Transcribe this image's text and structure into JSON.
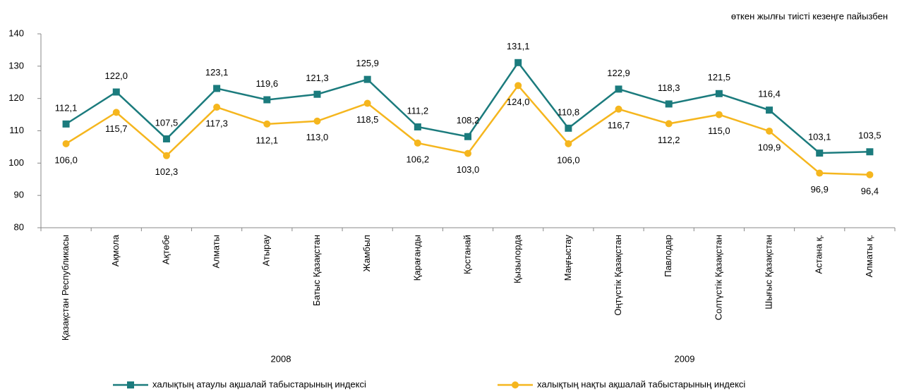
{
  "chart_data": {
    "type": "line",
    "subtitle": "өткен жылғы тиісті кезеңге пайызбен",
    "group_labels": [
      "2008",
      "2009"
    ],
    "categories": [
      "Қазақстан Республикасы",
      "Ақмола",
      "Ақтөбе",
      "Алматы",
      "Атырау",
      "Батыс Қазақстан",
      "Жамбыл",
      "Қарағанды",
      "Қостанай",
      "Қызылорда",
      "Маңғыстау",
      "Оңтүстік Қазақстан",
      "Павлодар",
      "Солтүстік Қазақстан",
      "Шығыс Қазақстан",
      "Астана  қ.",
      "Алматы қ."
    ],
    "series": [
      {
        "name": "халықтың атаулы ақшалай табыстарының индексі",
        "color": "#1b7b7d",
        "marker": "square",
        "values": [
          112.1,
          122.0,
          107.5,
          123.1,
          119.6,
          121.3,
          125.9,
          111.2,
          108.2,
          131.1,
          110.8,
          122.9,
          118.3,
          121.5,
          116.4,
          103.1,
          103.5
        ],
        "value_labels": [
          "112,1",
          "122,0",
          "107,5",
          "123,1",
          "119,6",
          "121,3",
          "125,9",
          "111,2",
          "108,2",
          "131,1",
          "110,8",
          "122,9",
          "118,3",
          "121,5",
          "116,4",
          "103,1",
          "103,5"
        ]
      },
      {
        "name": "халықтың нақты ақшалай табыстарының индексі",
        "color": "#f5b61e",
        "marker": "circle",
        "values": [
          106.0,
          115.7,
          102.3,
          117.3,
          112.1,
          113.0,
          118.5,
          106.2,
          103.0,
          124.0,
          106.0,
          116.7,
          112.2,
          115.0,
          109.9,
          96.9,
          96.4
        ],
        "value_labels": [
          "106,0",
          "115,7",
          "102,3",
          "117,3",
          "112,1",
          "113,0",
          "118,5",
          "106,2",
          "103,0",
          "124,0",
          "106,0",
          "116,7",
          "112,2",
          "115,0",
          "109,9",
          "96,9",
          "96,4"
        ]
      }
    ],
    "ylim": [
      80,
      140
    ],
    "yticks": [
      80,
      90,
      100,
      110,
      120,
      130,
      140
    ],
    "grid": false,
    "legend": "bottom"
  }
}
